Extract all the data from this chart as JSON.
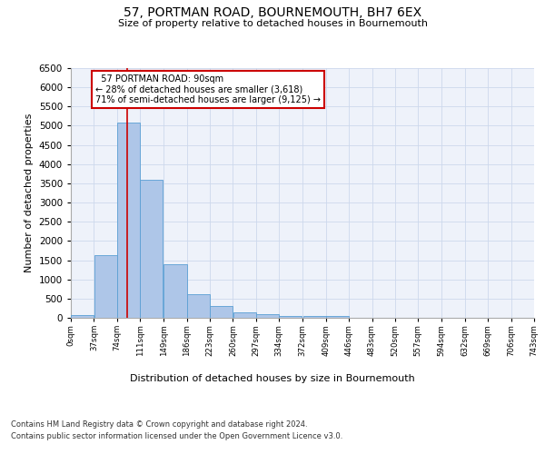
{
  "title": "57, PORTMAN ROAD, BOURNEMOUTH, BH7 6EX",
  "subtitle": "Size of property relative to detached houses in Bournemouth",
  "xlabel": "Distribution of detached houses by size in Bournemouth",
  "ylabel": "Number of detached properties",
  "property_label": "57 PORTMAN ROAD: 90sqm",
  "pct_smaller": 28,
  "count_smaller": 3618,
  "pct_larger_semi": 71,
  "count_larger_semi": 9125,
  "bin_edges": [
    0,
    37,
    74,
    111,
    149,
    186,
    223,
    260,
    297,
    334,
    372,
    409,
    446,
    483,
    520,
    557,
    594,
    632,
    669,
    706,
    743
  ],
  "bar_values": [
    70,
    1620,
    5080,
    3600,
    1400,
    620,
    310,
    140,
    90,
    55,
    45,
    50,
    0,
    0,
    0,
    0,
    0,
    0,
    0,
    0
  ],
  "bar_color": "#aec6e8",
  "bar_edge_color": "#5a9fd4",
  "vline_x": 90,
  "vline_color": "#cc0000",
  "annotation_box_color": "#cc0000",
  "grid_color": "#cdd8ec",
  "background_color": "#eef2fa",
  "ylim": [
    0,
    6500
  ],
  "footer1": "Contains HM Land Registry data © Crown copyright and database right 2024.",
  "footer2": "Contains public sector information licensed under the Open Government Licence v3.0."
}
